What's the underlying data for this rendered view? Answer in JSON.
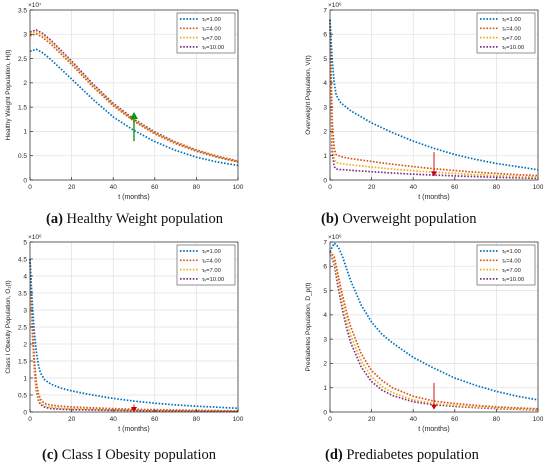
{
  "colors": {
    "series": [
      "#0072BD",
      "#D95319",
      "#EDB120",
      "#7E2F8E"
    ],
    "arrow_up": "#0a9a0a",
    "arrow_down": "#cc0000"
  },
  "legend_labels": [
    "τᵥ=1.00",
    "τᵥ=4.00",
    "τᵥ=7.00",
    "τᵥ=10.00"
  ],
  "captions": [
    {
      "letter": "(a)",
      "text": " Healthy Weight population"
    },
    {
      "letter": "(b)",
      "text": " Overweight population"
    },
    {
      "letter": "(c)",
      "text": " Class I Obesity population"
    },
    {
      "letter": "(d)",
      "text": " Prediabetes population"
    }
  ],
  "chart_data": [
    {
      "type": "line",
      "title": "",
      "xlabel": "t (months)",
      "ylabel": "Healthy Weight Population, H(t)",
      "y_multiplier": "×10⁷",
      "xlim": [
        0,
        100
      ],
      "ylim": [
        0,
        3.5
      ],
      "xticks": [
        0,
        20,
        40,
        60,
        80,
        100
      ],
      "yticks": [
        0,
        0.5,
        1,
        1.5,
        2,
        2.5,
        3,
        3.5
      ],
      "ytick_labels": [
        "0",
        "0.5",
        "1",
        "1.5",
        "2",
        "2.5",
        "3",
        "3.5"
      ],
      "legend_position": "top-right",
      "annotation": {
        "direction": "up",
        "x": 50,
        "y_from": 0.8,
        "y_to": 1.4
      },
      "x": [
        0,
        3,
        6,
        10,
        20,
        30,
        40,
        50,
        60,
        70,
        80,
        90,
        100
      ],
      "series": [
        {
          "name": "τᵥ=1.00",
          "values": [
            2.65,
            2.69,
            2.62,
            2.48,
            2.08,
            1.67,
            1.3,
            1.02,
            0.79,
            0.61,
            0.47,
            0.37,
            0.3
          ]
        },
        {
          "name": "τᵥ=4.00",
          "values": [
            2.97,
            3.01,
            2.94,
            2.8,
            2.38,
            1.93,
            1.53,
            1.21,
            0.95,
            0.75,
            0.59,
            0.47,
            0.37
          ]
        },
        {
          "name": "τᵥ=7.00",
          "values": [
            3.02,
            3.06,
            2.99,
            2.85,
            2.42,
            1.97,
            1.56,
            1.23,
            0.97,
            0.77,
            0.61,
            0.48,
            0.38
          ]
        },
        {
          "name": "τᵥ=10.00",
          "values": [
            3.05,
            3.09,
            3.02,
            2.88,
            2.45,
            1.99,
            1.58,
            1.25,
            0.99,
            0.78,
            0.62,
            0.49,
            0.39
          ]
        }
      ]
    },
    {
      "type": "line",
      "title": "",
      "xlabel": "t (months)",
      "ylabel": "Overweight Population, V(t)",
      "y_multiplier": "×10⁶",
      "xlim": [
        0,
        100
      ],
      "ylim": [
        0,
        7
      ],
      "xticks": [
        0,
        20,
        40,
        60,
        80,
        100
      ],
      "yticks": [
        0,
        1,
        2,
        3,
        4,
        5,
        6,
        7
      ],
      "ytick_labels": [
        "0",
        "1",
        "2",
        "3",
        "4",
        "5",
        "6",
        "7"
      ],
      "legend_position": "top-right",
      "annotation": {
        "direction": "down",
        "x": 50,
        "y_from": 1.15,
        "y_to": 0.15
      },
      "x": [
        0,
        1,
        2,
        3,
        5,
        7,
        10,
        20,
        30,
        40,
        50,
        60,
        70,
        80,
        90,
        100
      ],
      "series": [
        {
          "name": "τᵥ=1.00",
          "values": [
            6.6,
            5.0,
            4.0,
            3.5,
            3.2,
            3.05,
            2.85,
            2.35,
            1.95,
            1.6,
            1.3,
            1.05,
            0.85,
            0.68,
            0.55,
            0.42
          ]
        },
        {
          "name": "τᵥ=4.00",
          "values": [
            6.6,
            2.5,
            1.3,
            1.05,
            0.97,
            0.93,
            0.88,
            0.76,
            0.65,
            0.55,
            0.46,
            0.39,
            0.32,
            0.27,
            0.22,
            0.18
          ]
        },
        {
          "name": "τᵥ=7.00",
          "values": [
            6.6,
            1.8,
            0.85,
            0.72,
            0.68,
            0.65,
            0.62,
            0.53,
            0.45,
            0.38,
            0.32,
            0.27,
            0.22,
            0.18,
            0.15,
            0.12
          ]
        },
        {
          "name": "τᵥ=10.00",
          "values": [
            6.6,
            1.2,
            0.55,
            0.45,
            0.43,
            0.42,
            0.4,
            0.34,
            0.29,
            0.24,
            0.2,
            0.17,
            0.14,
            0.11,
            0.09,
            0.07
          ]
        }
      ]
    },
    {
      "type": "line",
      "title": "",
      "xlabel": "t (months)",
      "ylabel": "Class I Obesity Population, O₁(t)",
      "y_multiplier": "×10⁶",
      "xlim": [
        0,
        100
      ],
      "ylim": [
        0,
        5
      ],
      "xticks": [
        0,
        20,
        40,
        60,
        80,
        100
      ],
      "yticks": [
        0,
        0.5,
        1,
        1.5,
        2,
        2.5,
        3,
        3.5,
        4,
        4.5,
        5
      ],
      "ytick_labels": [
        "0",
        "0.5",
        "1",
        "1.5",
        "2",
        "2.5",
        "3",
        "3.5",
        "4",
        "4.5",
        "5"
      ],
      "legend_position": "top-right",
      "annotation": {
        "direction": "down",
        "x": 50,
        "y_from": 0.22,
        "y_to": 0.0
      },
      "x": [
        0,
        1,
        2,
        3,
        4,
        5,
        7,
        10,
        15,
        20,
        30,
        40,
        50,
        60,
        70,
        80,
        90,
        100
      ],
      "series": [
        {
          "name": "τᵥ=1.00",
          "values": [
            4.5,
            3.3,
            2.4,
            1.8,
            1.4,
            1.15,
            0.95,
            0.82,
            0.7,
            0.62,
            0.5,
            0.4,
            0.32,
            0.26,
            0.21,
            0.17,
            0.14,
            0.11
          ]
        },
        {
          "name": "τᵥ=4.00",
          "values": [
            4.5,
            2.8,
            1.6,
            0.9,
            0.55,
            0.38,
            0.25,
            0.2,
            0.17,
            0.15,
            0.12,
            0.1,
            0.08,
            0.07,
            0.06,
            0.05,
            0.04,
            0.03
          ]
        },
        {
          "name": "τᵥ=7.00",
          "values": [
            4.5,
            2.6,
            1.4,
            0.75,
            0.42,
            0.28,
            0.18,
            0.14,
            0.11,
            0.1,
            0.08,
            0.06,
            0.05,
            0.04,
            0.035,
            0.03,
            0.025,
            0.02
          ]
        },
        {
          "name": "τᵥ=10.00",
          "values": [
            4.5,
            2.5,
            1.3,
            0.65,
            0.35,
            0.22,
            0.14,
            0.1,
            0.08,
            0.07,
            0.06,
            0.05,
            0.04,
            0.03,
            0.025,
            0.02,
            0.018,
            0.015
          ]
        }
      ]
    },
    {
      "type": "line",
      "title": "",
      "xlabel": "t (months)",
      "ylabel": "Prediabetes Population, D_p(t)",
      "y_multiplier": "×10⁶",
      "xlim": [
        0,
        100
      ],
      "ylim": [
        0,
        7
      ],
      "xticks": [
        0,
        20,
        40,
        60,
        80,
        100
      ],
      "yticks": [
        0,
        1,
        2,
        3,
        4,
        5,
        6,
        7
      ],
      "ytick_labels": [
        "0",
        "1",
        "2",
        "3",
        "4",
        "5",
        "6",
        "7"
      ],
      "legend_position": "top-right",
      "annotation": {
        "direction": "down",
        "x": 50,
        "y_from": 1.2,
        "y_to": 0.1
      },
      "x": [
        0,
        2,
        4,
        6,
        8,
        10,
        15,
        20,
        25,
        30,
        40,
        50,
        60,
        70,
        80,
        90,
        100
      ],
      "series": [
        {
          "name": "τᵥ=1.00",
          "values": [
            6.6,
            6.95,
            6.8,
            6.4,
            5.9,
            5.4,
            4.4,
            3.7,
            3.2,
            2.85,
            2.25,
            1.8,
            1.4,
            1.1,
            0.85,
            0.65,
            0.5
          ]
        },
        {
          "name": "τᵥ=4.00",
          "values": [
            6.6,
            6.4,
            5.6,
            4.8,
            4.1,
            3.5,
            2.4,
            1.7,
            1.3,
            1.0,
            0.65,
            0.45,
            0.35,
            0.27,
            0.21,
            0.17,
            0.13
          ]
        },
        {
          "name": "τᵥ=7.00",
          "values": [
            6.6,
            6.25,
            5.4,
            4.5,
            3.75,
            3.15,
            2.1,
            1.45,
            1.05,
            0.8,
            0.5,
            0.35,
            0.27,
            0.21,
            0.17,
            0.13,
            0.1
          ]
        },
        {
          "name": "τᵥ=10.00",
          "values": [
            6.6,
            6.1,
            5.1,
            4.2,
            3.45,
            2.85,
            1.85,
            1.25,
            0.9,
            0.68,
            0.42,
            0.3,
            0.23,
            0.18,
            0.14,
            0.11,
            0.08
          ]
        }
      ]
    }
  ]
}
